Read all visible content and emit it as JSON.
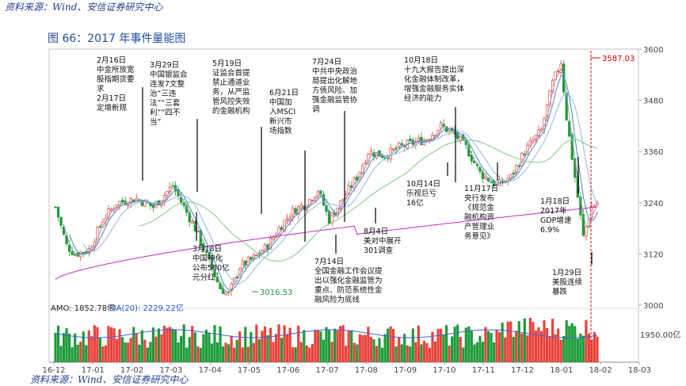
{
  "header": {
    "source_top": "资料来源：Wind、安信证券研究中心",
    "figure_title": "图 66：2017 年事件量能图",
    "source_bottom": "资料来源：Wind、安信证券研究中心"
  },
  "colors": {
    "up": "#e8423b",
    "down": "#1e9b3a",
    "ma_white": "#9a9a9a",
    "ma_yellow": "#8fb7e6",
    "ma_blue": "#4a7fd4",
    "ma_green": "#7fc97f",
    "ma_purple": "#c83ccf",
    "annotation_line": "#000000",
    "peak_line": "#d60000"
  },
  "chart_data": {
    "type": "candlestick",
    "ylim": [
      3000,
      3600
    ],
    "yticks": [
      3000,
      3120,
      3240,
      3360,
      3480,
      3600
    ],
    "xticks": [
      "16-12",
      "17-01",
      "17-02",
      "17-03",
      "17-04",
      "17-05",
      "17-06",
      "17-07",
      "17-08",
      "17-09",
      "17-10",
      "17-11",
      "17-12",
      "18-01",
      "18-02",
      "18-03"
    ],
    "peak_label": "3587.03",
    "low_label": "3016.53",
    "volume": {
      "amo_label": "AMO: 1852.78亿",
      "ma_label": "MA(20): 2229.22亿",
      "ytick": "1950.00亿"
    },
    "annotations": [
      {
        "date": "2017-02-16",
        "text": "2月16日\n中金所放宽\n股指期货要\n求\n2月17日\n定增新规"
      },
      {
        "date": "2017-03-29",
        "text": "3月29日\n中国银监会\n连发7文整\n治“三违\n法”“三套\n利”“四不\n当”"
      },
      {
        "date": "2017-05-19",
        "text": "5月19日\n证监会首提\n禁止通道业\n务，从严监\n管风控失效\n的金融机构"
      },
      {
        "date": "2017-06-21",
        "text": "6月21日\n中国加\n入MSCI\n新兴市\n场指数"
      },
      {
        "date": "2017-07-24",
        "text": "7月24日\n中共中央政治\n局提出化解地\n方债风险、加\n强金融监管协\n调"
      },
      {
        "date": "2017-10-18",
        "text": "10月18日\n十九大报告提出深\n化金融体制改革，\n增强金融服务实体\n经济的能力"
      },
      {
        "date": "2017-03-18",
        "text": "3月18日\n中国神化\n公布580亿\n元分红"
      },
      {
        "date": "2017-07-14",
        "text": "7月14日\n全国金融工作会议提\n出以强化金融监管为\n重点、防范系统性金\n融风险为底线"
      },
      {
        "date": "2017-08-04",
        "text": "8月4日\n美对中展开\n301调查"
      },
      {
        "date": "2017-10-14",
        "text": "10月14日\n乐视巨亏\n16亿"
      },
      {
        "date": "2017-11-17",
        "text": "11月17日\n央行发布\n《规范金\n融机构资\n产管理业\n务意见》"
      },
      {
        "date": "2018-01-18",
        "text": "1月18日\n2017年\nGDP增速\n6.9%"
      },
      {
        "date": "2018-01-29",
        "text": "1月29日\n美股连续\n暴跌"
      }
    ]
  }
}
